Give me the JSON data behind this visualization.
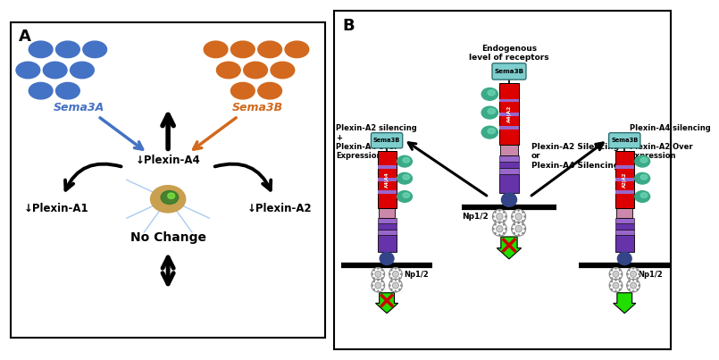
{
  "fig_width": 7.5,
  "fig_height": 3.91,
  "background": "#ffffff",
  "panel_A": {
    "label": "A",
    "blue_color": "#4472C4",
    "orange_color": "#D2691E",
    "sema3A_label": "Sema3A",
    "sema3B_label": "Sema3B",
    "plexin_a4_label": "↓Plexin-A4",
    "plexin_a1_label": "↓Plexin-A1",
    "plexin_a2_label": "↓Plexin-A2",
    "no_change_label": "No Change"
  },
  "panel_B": {
    "label": "B",
    "sema3B_bg": "#7ECECE",
    "red_block": "#DD0000",
    "purple_block": "#6633AA",
    "light_purple": "#9966CC",
    "pink_block": "#CC88AA",
    "teal_shape": "#3AAA88",
    "navy_oval": "#334488",
    "np12_label": "Np1/2",
    "endogenous_label": "Endogenous\nlevel of receptors",
    "sema3B_label": "Sema3B",
    "plexin_sil_label": "Plexin-A2 Silencing\nor\nPlexin-A4 Silencing",
    "left_condition": "Plexin-A2 silencing\n+\nPlexin-A4 over\nExpression",
    "right_condition": "Plexin-A4 silencing\n+\nPlexin-A2 Over\nExpression"
  }
}
